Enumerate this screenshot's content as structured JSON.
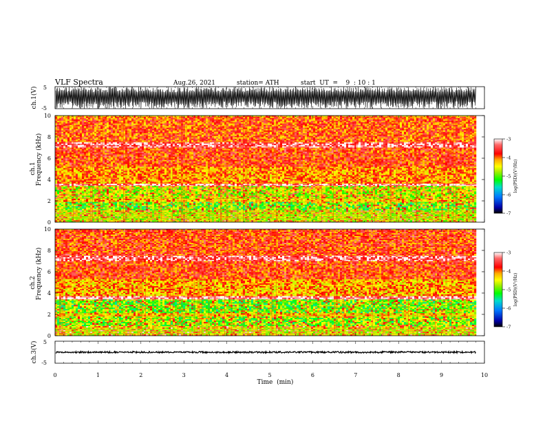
{
  "header": {
    "title": "VLF  Spectra",
    "date": "Aug.26, 2021",
    "station": "station= ATH",
    "start_ut": "start  UT  =    9  : 10 : 1"
  },
  "colors": {
    "background": "#ffffff",
    "waveform": "#000000",
    "colormap": [
      "#000000",
      "#0000aa",
      "#0077ff",
      "#00ddcc",
      "#00ff00",
      "#99ee00",
      "#ffff00",
      "#ffaa00",
      "#ff0000",
      "#ff6666",
      "#ffffff"
    ]
  },
  "chart_data": [
    {
      "type": "line",
      "panel": "ch1-waveform",
      "ylabel": "ch.1(V)",
      "ylim": [
        -5,
        5
      ],
      "yticks": [
        "5",
        "-5"
      ],
      "xlim": [
        0,
        10
      ],
      "description_of_data": "dense broadband waveform",
      "envelope": {
        "min": -5,
        "max": 5
      }
    },
    {
      "type": "heatmap",
      "panel": "ch1-spectrogram",
      "ylabel": "ch.1\nFrequency  (kHz)",
      "ylabel_line1": "ch.1",
      "ylabel_line2": "Frequency  (kHz)",
      "ylim": [
        0,
        10
      ],
      "yticks": [
        "0",
        "2",
        "4",
        "6",
        "8",
        "10"
      ],
      "xlim": [
        0,
        10
      ],
      "colorbar": {
        "label": "log(PSD)(V²/Hz)",
        "range": [
          -7,
          -3
        ],
        "ticks": [
          "-3",
          "-4",
          "-5",
          "-6",
          "-7"
        ]
      },
      "bands": [
        {
          "f0": 9.9,
          "f1": 10.0,
          "level": -4.3
        },
        {
          "f0": 7.5,
          "f1": 9.9,
          "level": -3.9
        },
        {
          "f0": 7.0,
          "f1": 7.5,
          "level": -3.3
        },
        {
          "f0": 5.2,
          "f1": 7.0,
          "level": -3.8
        },
        {
          "f0": 3.6,
          "f1": 5.2,
          "level": -4.1
        },
        {
          "f0": 3.4,
          "f1": 3.6,
          "level": -3.2
        },
        {
          "f0": 2.2,
          "f1": 3.4,
          "level": -4.7
        },
        {
          "f0": 1.9,
          "f1": 2.2,
          "level": -4.3
        },
        {
          "f0": 1.1,
          "f1": 1.9,
          "level": -5.0
        },
        {
          "f0": 0.0,
          "f1": 1.1,
          "level": -4.6
        }
      ],
      "lines_khz": [
        0.2,
        0.35,
        0.55,
        0.75,
        0.95
      ]
    },
    {
      "type": "heatmap",
      "panel": "ch2-spectrogram",
      "ylabel_line1": "ch.2",
      "ylabel_line2": "Frequency  (kHz)",
      "ylim": [
        0,
        10
      ],
      "yticks": [
        "0",
        "2",
        "4",
        "6",
        "8",
        "10"
      ],
      "xlim": [
        0,
        10
      ],
      "colorbar": {
        "label": "log(PSD)(V²/Hz)",
        "range": [
          -7,
          -3
        ],
        "ticks": [
          "-3",
          "-4",
          "-5",
          "-6",
          "-7"
        ]
      },
      "bands": [
        {
          "f0": 7.5,
          "f1": 10.0,
          "level": -3.8
        },
        {
          "f0": 7.0,
          "f1": 7.5,
          "level": -3.3
        },
        {
          "f0": 5.3,
          "f1": 7.0,
          "level": -3.8
        },
        {
          "f0": 3.7,
          "f1": 5.3,
          "level": -4.2
        },
        {
          "f0": 3.4,
          "f1": 3.7,
          "level": -3.2
        },
        {
          "f0": 2.1,
          "f1": 3.4,
          "level": -5.0
        },
        {
          "f0": 1.8,
          "f1": 2.1,
          "level": -4.3
        },
        {
          "f0": 0.9,
          "f1": 1.8,
          "level": -4.9
        },
        {
          "f0": 0.0,
          "f1": 0.9,
          "level": -4.5
        }
      ],
      "lines_khz": [
        0.2,
        0.4,
        0.6
      ]
    },
    {
      "type": "line",
      "panel": "ch3-waveform",
      "ylabel": "ch.3(V)",
      "ylim": [
        -5,
        5
      ],
      "yticks": [
        "5",
        "-5"
      ],
      "xlim": [
        0,
        10
      ],
      "xlabel": "Time  (min)",
      "xticks": [
        "0",
        "1",
        "2",
        "3",
        "4",
        "5",
        "6",
        "7",
        "8",
        "9",
        "10"
      ],
      "description_of_data": "nearly flat narrow trace",
      "envelope": {
        "min": -0.4,
        "max": 0.4
      }
    }
  ]
}
